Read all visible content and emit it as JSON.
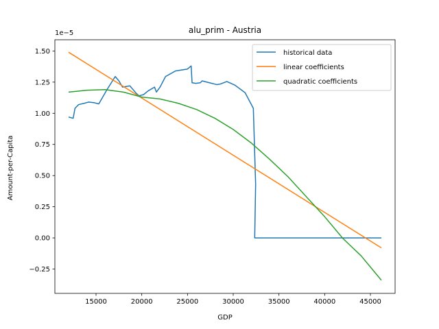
{
  "chart_data": {
    "type": "line",
    "title": "alu_prim - Austria",
    "xlabel": "GDP",
    "ylabel": "Amount-per-Capita",
    "y_offset_label": "1e−5",
    "xlim": [
      10500,
      47700
    ],
    "ylim": [
      -0.445,
      1.59
    ],
    "x_ticks": [
      15000,
      20000,
      25000,
      30000,
      35000,
      40000,
      45000
    ],
    "x_tick_labels": [
      "15000",
      "20000",
      "25000",
      "30000",
      "35000",
      "40000",
      "45000"
    ],
    "y_ticks": [
      -0.25,
      0,
      0.25,
      0.5,
      0.75,
      1.0,
      1.25,
      1.5
    ],
    "y_tick_labels": [
      "−0.25",
      "0.00",
      "0.25",
      "0.50",
      "0.75",
      "1.00",
      "1.25",
      "1.50"
    ],
    "grid": false,
    "legend_position": "top-right",
    "colors": {
      "historical": "#1f77b4",
      "linear": "#ff7f0e",
      "quadratic": "#2ca02c"
    },
    "series": [
      {
        "name": "historical data",
        "color": "#1f77b4",
        "points": [
          [
            12000,
            0.97
          ],
          [
            12500,
            0.96
          ],
          [
            12700,
            1.04
          ],
          [
            13100,
            1.07
          ],
          [
            13700,
            1.08
          ],
          [
            14200,
            1.09
          ],
          [
            14800,
            1.085
          ],
          [
            15300,
            1.075
          ],
          [
            16200,
            1.19
          ],
          [
            17100,
            1.295
          ],
          [
            17500,
            1.26
          ],
          [
            17900,
            1.21
          ],
          [
            18700,
            1.22
          ],
          [
            19400,
            1.16
          ],
          [
            19700,
            1.14
          ],
          [
            20200,
            1.15
          ],
          [
            20700,
            1.18
          ],
          [
            21400,
            1.21
          ],
          [
            21600,
            1.17
          ],
          [
            22000,
            1.21
          ],
          [
            22600,
            1.295
          ],
          [
            23700,
            1.34
          ],
          [
            25000,
            1.355
          ],
          [
            25400,
            1.38
          ],
          [
            25500,
            1.245
          ],
          [
            25900,
            1.24
          ],
          [
            26400,
            1.245
          ],
          [
            26600,
            1.26
          ],
          [
            27400,
            1.245
          ],
          [
            28200,
            1.23
          ],
          [
            28600,
            1.235
          ],
          [
            29300,
            1.255
          ],
          [
            30200,
            1.225
          ],
          [
            31300,
            1.165
          ],
          [
            32200,
            1.04
          ],
          [
            32450,
            0.43
          ],
          [
            32350,
            0.0
          ],
          [
            46200,
            0.0
          ]
        ]
      },
      {
        "name": "linear coefficients",
        "color": "#ff7f0e",
        "points": [
          [
            12000,
            1.49
          ],
          [
            46200,
            -0.08
          ]
        ]
      },
      {
        "name": "quadratic coefficients",
        "color": "#2ca02c",
        "points": [
          [
            12000,
            1.17
          ],
          [
            14000,
            1.185
          ],
          [
            16000,
            1.19
          ],
          [
            18000,
            1.17
          ],
          [
            20000,
            1.13
          ],
          [
            22000,
            1.115
          ],
          [
            24000,
            1.08
          ],
          [
            26000,
            1.03
          ],
          [
            28000,
            0.96
          ],
          [
            30000,
            0.87
          ],
          [
            32000,
            0.76
          ],
          [
            34000,
            0.63
          ],
          [
            36000,
            0.49
          ],
          [
            38000,
            0.33
          ],
          [
            40000,
            0.17
          ],
          [
            42000,
            -0.005
          ],
          [
            44000,
            -0.145
          ],
          [
            46200,
            -0.34
          ]
        ]
      }
    ]
  }
}
